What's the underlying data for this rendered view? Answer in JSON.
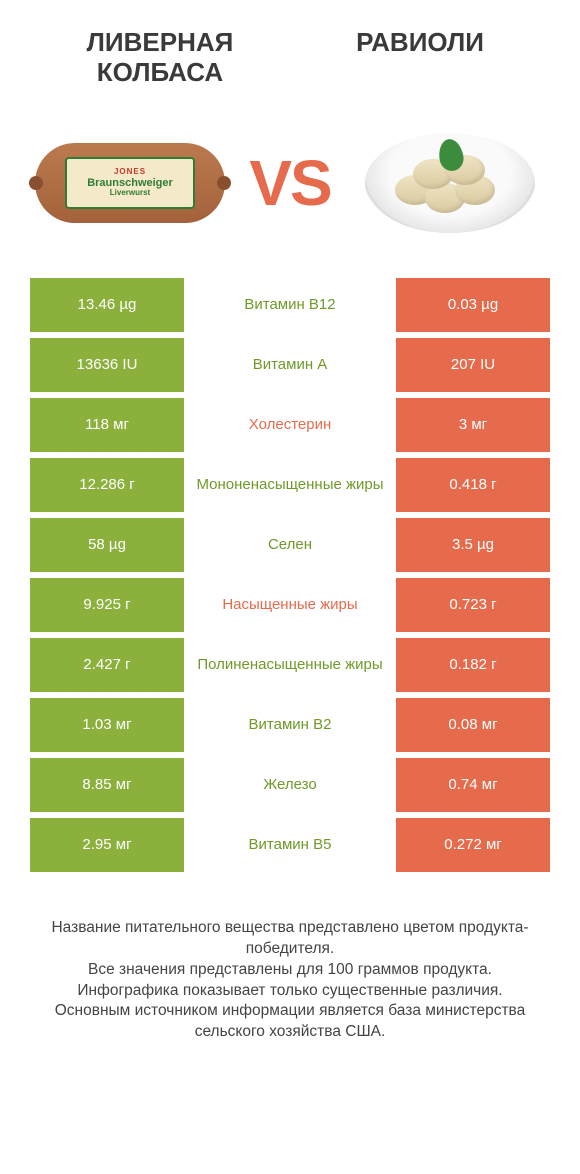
{
  "titles": {
    "left": "ЛИВЕРНАЯ КОЛБАСА",
    "right": "РАВИОЛИ"
  },
  "vs": "VS",
  "sausage_label": {
    "brand": "JONES",
    "main": "Braunschweiger",
    "sub": "Liverwurst"
  },
  "colors": {
    "green": "#8bb13c",
    "orange": "#e66b4d",
    "txt_green": "#6f9a2a",
    "txt_orange": "#e66b4d",
    "bg": "#ffffff"
  },
  "rows": [
    {
      "left": "13.46 µg",
      "label": "Витамин B12",
      "winner": "left",
      "right": "0.03 µg"
    },
    {
      "left": "13636 IU",
      "label": "Витамин A",
      "winner": "left",
      "right": "207 IU"
    },
    {
      "left": "118 мг",
      "label": "Холестерин",
      "winner": "right",
      "right": "3 мг"
    },
    {
      "left": "12.286 г",
      "label": "Мононенасыщенные жиры",
      "winner": "left",
      "right": "0.418 г"
    },
    {
      "left": "58 µg",
      "label": "Селен",
      "winner": "left",
      "right": "3.5 µg"
    },
    {
      "left": "9.925 г",
      "label": "Насыщенные жиры",
      "winner": "right",
      "right": "0.723 г"
    },
    {
      "left": "2.427 г",
      "label": "Полиненасыщенные жиры",
      "winner": "left",
      "right": "0.182 г"
    },
    {
      "left": "1.03 мг",
      "label": "Витамин B2",
      "winner": "left",
      "right": "0.08 мг"
    },
    {
      "left": "8.85 мг",
      "label": "Железо",
      "winner": "left",
      "right": "0.74 мг"
    },
    {
      "left": "2.95 мг",
      "label": "Витамин B5",
      "winner": "left",
      "right": "0.272 мг"
    }
  ],
  "footer": [
    "Название питательного вещества представлено цветом продукта-победителя.",
    "Все значения представлены для 100 граммов продукта.",
    "Инфографика показывает только существенные различия.",
    "Основным источником информации является база министерства сельского хозяйства США."
  ]
}
